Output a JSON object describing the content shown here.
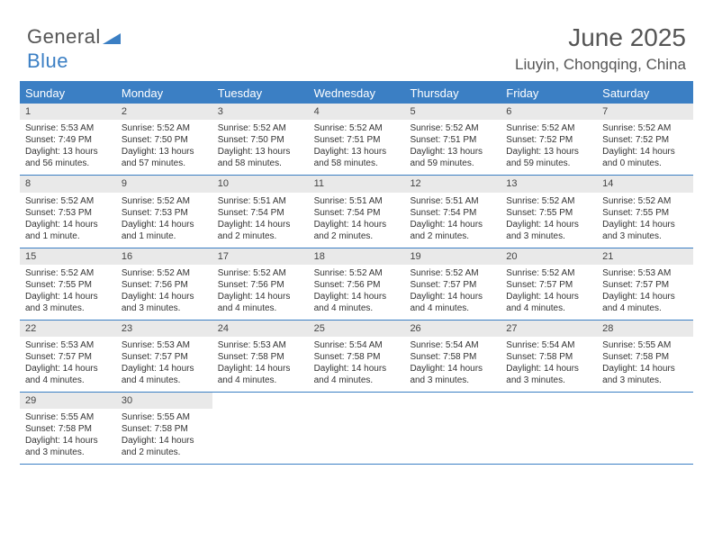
{
  "brand": {
    "part1": "General",
    "part2": "Blue"
  },
  "title": "June 2025",
  "location": "Liuyin, Chongqing, China",
  "colors": {
    "accent": "#3b7fc4",
    "header_bg": "#e9e9e9",
    "text": "#333333",
    "bg": "#ffffff"
  },
  "day_names": [
    "Sunday",
    "Monday",
    "Tuesday",
    "Wednesday",
    "Thursday",
    "Friday",
    "Saturday"
  ],
  "weeks": [
    [
      {
        "n": "1",
        "sr": "Sunrise: 5:53 AM",
        "ss": "Sunset: 7:49 PM",
        "dl": "Daylight: 13 hours and 56 minutes."
      },
      {
        "n": "2",
        "sr": "Sunrise: 5:52 AM",
        "ss": "Sunset: 7:50 PM",
        "dl": "Daylight: 13 hours and 57 minutes."
      },
      {
        "n": "3",
        "sr": "Sunrise: 5:52 AM",
        "ss": "Sunset: 7:50 PM",
        "dl": "Daylight: 13 hours and 58 minutes."
      },
      {
        "n": "4",
        "sr": "Sunrise: 5:52 AM",
        "ss": "Sunset: 7:51 PM",
        "dl": "Daylight: 13 hours and 58 minutes."
      },
      {
        "n": "5",
        "sr": "Sunrise: 5:52 AM",
        "ss": "Sunset: 7:51 PM",
        "dl": "Daylight: 13 hours and 59 minutes."
      },
      {
        "n": "6",
        "sr": "Sunrise: 5:52 AM",
        "ss": "Sunset: 7:52 PM",
        "dl": "Daylight: 13 hours and 59 minutes."
      },
      {
        "n": "7",
        "sr": "Sunrise: 5:52 AM",
        "ss": "Sunset: 7:52 PM",
        "dl": "Daylight: 14 hours and 0 minutes."
      }
    ],
    [
      {
        "n": "8",
        "sr": "Sunrise: 5:52 AM",
        "ss": "Sunset: 7:53 PM",
        "dl": "Daylight: 14 hours and 1 minute."
      },
      {
        "n": "9",
        "sr": "Sunrise: 5:52 AM",
        "ss": "Sunset: 7:53 PM",
        "dl": "Daylight: 14 hours and 1 minute."
      },
      {
        "n": "10",
        "sr": "Sunrise: 5:51 AM",
        "ss": "Sunset: 7:54 PM",
        "dl": "Daylight: 14 hours and 2 minutes."
      },
      {
        "n": "11",
        "sr": "Sunrise: 5:51 AM",
        "ss": "Sunset: 7:54 PM",
        "dl": "Daylight: 14 hours and 2 minutes."
      },
      {
        "n": "12",
        "sr": "Sunrise: 5:51 AM",
        "ss": "Sunset: 7:54 PM",
        "dl": "Daylight: 14 hours and 2 minutes."
      },
      {
        "n": "13",
        "sr": "Sunrise: 5:52 AM",
        "ss": "Sunset: 7:55 PM",
        "dl": "Daylight: 14 hours and 3 minutes."
      },
      {
        "n": "14",
        "sr": "Sunrise: 5:52 AM",
        "ss": "Sunset: 7:55 PM",
        "dl": "Daylight: 14 hours and 3 minutes."
      }
    ],
    [
      {
        "n": "15",
        "sr": "Sunrise: 5:52 AM",
        "ss": "Sunset: 7:55 PM",
        "dl": "Daylight: 14 hours and 3 minutes."
      },
      {
        "n": "16",
        "sr": "Sunrise: 5:52 AM",
        "ss": "Sunset: 7:56 PM",
        "dl": "Daylight: 14 hours and 3 minutes."
      },
      {
        "n": "17",
        "sr": "Sunrise: 5:52 AM",
        "ss": "Sunset: 7:56 PM",
        "dl": "Daylight: 14 hours and 4 minutes."
      },
      {
        "n": "18",
        "sr": "Sunrise: 5:52 AM",
        "ss": "Sunset: 7:56 PM",
        "dl": "Daylight: 14 hours and 4 minutes."
      },
      {
        "n": "19",
        "sr": "Sunrise: 5:52 AM",
        "ss": "Sunset: 7:57 PM",
        "dl": "Daylight: 14 hours and 4 minutes."
      },
      {
        "n": "20",
        "sr": "Sunrise: 5:52 AM",
        "ss": "Sunset: 7:57 PM",
        "dl": "Daylight: 14 hours and 4 minutes."
      },
      {
        "n": "21",
        "sr": "Sunrise: 5:53 AM",
        "ss": "Sunset: 7:57 PM",
        "dl": "Daylight: 14 hours and 4 minutes."
      }
    ],
    [
      {
        "n": "22",
        "sr": "Sunrise: 5:53 AM",
        "ss": "Sunset: 7:57 PM",
        "dl": "Daylight: 14 hours and 4 minutes."
      },
      {
        "n": "23",
        "sr": "Sunrise: 5:53 AM",
        "ss": "Sunset: 7:57 PM",
        "dl": "Daylight: 14 hours and 4 minutes."
      },
      {
        "n": "24",
        "sr": "Sunrise: 5:53 AM",
        "ss": "Sunset: 7:58 PM",
        "dl": "Daylight: 14 hours and 4 minutes."
      },
      {
        "n": "25",
        "sr": "Sunrise: 5:54 AM",
        "ss": "Sunset: 7:58 PM",
        "dl": "Daylight: 14 hours and 4 minutes."
      },
      {
        "n": "26",
        "sr": "Sunrise: 5:54 AM",
        "ss": "Sunset: 7:58 PM",
        "dl": "Daylight: 14 hours and 3 minutes."
      },
      {
        "n": "27",
        "sr": "Sunrise: 5:54 AM",
        "ss": "Sunset: 7:58 PM",
        "dl": "Daylight: 14 hours and 3 minutes."
      },
      {
        "n": "28",
        "sr": "Sunrise: 5:55 AM",
        "ss": "Sunset: 7:58 PM",
        "dl": "Daylight: 14 hours and 3 minutes."
      }
    ],
    [
      {
        "n": "29",
        "sr": "Sunrise: 5:55 AM",
        "ss": "Sunset: 7:58 PM",
        "dl": "Daylight: 14 hours and 3 minutes."
      },
      {
        "n": "30",
        "sr": "Sunrise: 5:55 AM",
        "ss": "Sunset: 7:58 PM",
        "dl": "Daylight: 14 hours and 2 minutes."
      },
      null,
      null,
      null,
      null,
      null
    ]
  ]
}
